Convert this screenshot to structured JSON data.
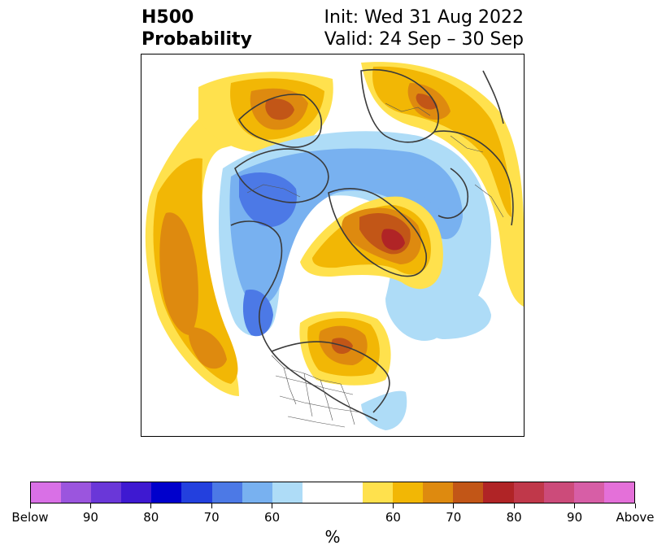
{
  "title": {
    "left_line1": "H500",
    "left_line2": "Probability",
    "right_line1": "Init: Wed 31 Aug 2022",
    "right_line2": "Valid: 24 Sep – 30 Sep"
  },
  "colorbar": {
    "colors": [
      "#d970e6",
      "#9b55de",
      "#6a37d8",
      "#3e19d1",
      "#0000cc",
      "#2340de",
      "#4c79e6",
      "#78b1f0",
      "#aedcf7",
      "#ffffff",
      "#ffffff",
      "#ffe14d",
      "#f2b705",
      "#de8a0f",
      "#c25617",
      "#b02426",
      "#c0384a",
      "#cc4b7a",
      "#d75ea6",
      "#e470d9"
    ],
    "tick_labels": [
      "Below",
      "90",
      "80",
      "70",
      "60",
      "60",
      "70",
      "80",
      "90",
      "Above"
    ],
    "unit_label": "%"
  }
}
